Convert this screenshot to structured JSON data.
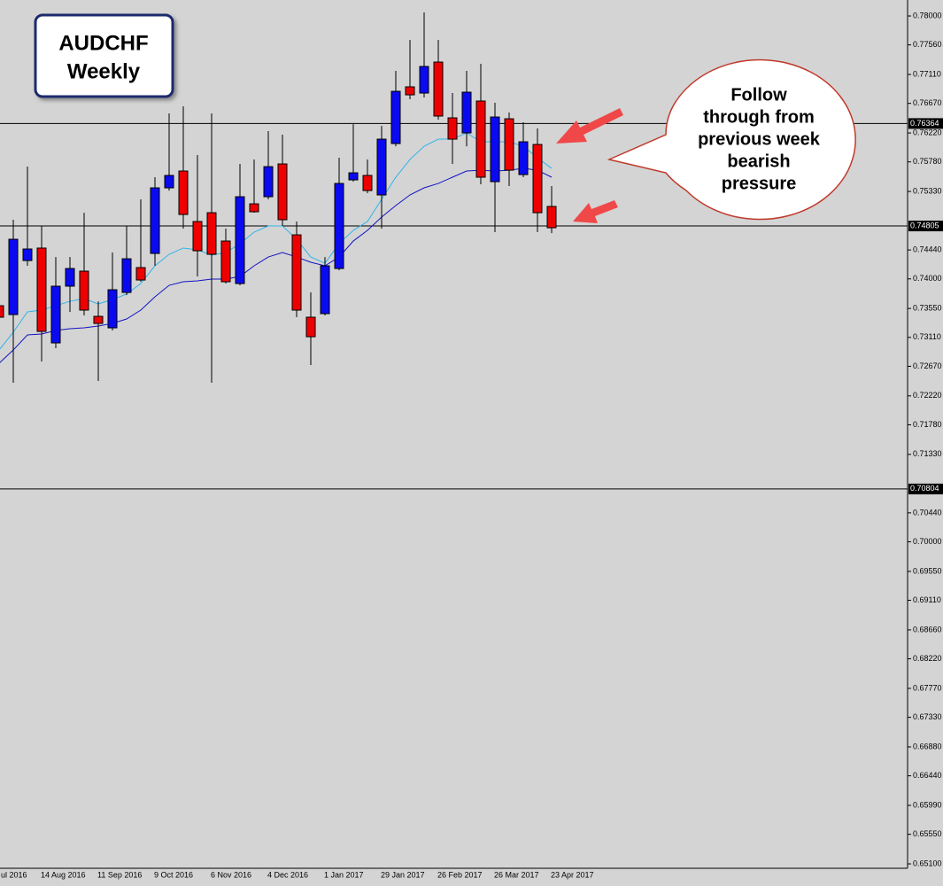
{
  "chart_data": {
    "type": "candlestick",
    "title": "AUDCHF",
    "subtitle": "Weekly",
    "callout": [
      "Follow",
      "through from",
      "previous week",
      "bearish",
      "pressure"
    ],
    "categories": [
      "ul 2016",
      null,
      null,
      "14 Aug 2016",
      null,
      null,
      null,
      "11 Sep 2016",
      null,
      null,
      null,
      "9 Oct 2016",
      null,
      null,
      null,
      "6 Nov 2016",
      null,
      null,
      null,
      "4 Dec 2016",
      null,
      null,
      null,
      "1 Jan 2017",
      null,
      null,
      null,
      "29 Jan 2017",
      null,
      null,
      null,
      "26 Feb 2017",
      null,
      null,
      null,
      "26 Mar 2017",
      null,
      null,
      null,
      "23 Apr 2017"
    ],
    "open": [
      0.73592,
      0.73457,
      0.74279,
      0.74469,
      0.73026,
      0.73889,
      0.74118,
      0.7343,
      0.73255,
      0.73794,
      0.74172,
      0.74387,
      0.75385,
      0.75641,
      0.74873,
      0.75007,
      0.74576,
      0.73929,
      0.75142,
      0.7525,
      0.75749,
      0.7467,
      0.73417,
      0.73471,
      0.74158,
      0.75506,
      0.75574,
      0.75277,
      0.76059,
      0.76922,
      0.76827,
      0.77299,
      0.7645,
      0.76221,
      0.76706,
      0.75479,
      0.76436,
      0.75587,
      0.76045,
      0.75102
    ],
    "high": [
      0.73794,
      0.749,
      0.75708,
      0.74805,
      0.74333,
      0.74333,
      0.75007,
      0.73659,
      0.74401,
      0.74805,
      0.7521,
      0.75547,
      0.76517,
      0.76625,
      0.75884,
      0.76517,
      0.74765,
      0.75749,
      0.75816,
      0.76248,
      0.76194,
      0.74873,
      0.73794,
      0.74333,
      0.75843,
      0.76355,
      0.75816,
      0.76328,
      0.77164,
      0.77636,
      0.78054,
      0.77636,
      0.76827,
      0.77164,
      0.77272,
      0.76679,
      0.76531,
      0.76382,
      0.76288,
      0.75412
    ],
    "low": [
      0.73255,
      0.72419,
      0.74199,
      0.72743,
      0.72945,
      0.73498,
      0.73444,
      0.72446,
      0.73215,
      0.73754,
      0.73956,
      0.74199,
      0.75344,
      0.74765,
      0.74037,
      0.72419,
      0.73929,
      0.73902,
      0.75007,
      0.7521,
      0.74805,
      0.73417,
      0.72689,
      0.73444,
      0.74131,
      0.75479,
      0.75304,
      0.74765,
      0.76018,
      0.76733,
      0.7676,
      0.76423,
      0.75749,
      0.76018,
      0.75439,
      0.74711,
      0.75412,
      0.75547,
      0.74711,
      0.74697
    ],
    "close": [
      0.73417,
      0.74603,
      0.74455,
      0.73201,
      0.73889,
      0.74158,
      0.73525,
      0.73322,
      0.73835,
      0.74306,
      0.73983,
      0.75385,
      0.75574,
      0.7498,
      0.74428,
      0.74374,
      0.73956,
      0.7525,
      0.75021,
      0.75708,
      0.749,
      0.73525,
      0.7312,
      0.74199,
      0.75452,
      0.75614,
      0.75344,
      0.76126,
      0.76854,
      0.768,
      0.77232,
      0.76477,
      0.76126,
      0.76841,
      0.75547,
      0.76463,
      0.75654,
      0.76086,
      0.75007,
      0.74778
    ],
    "up_color": "#0a0af0",
    "down_color": "#ee0000",
    "lines": [
      {
        "color": "#2fb4ea",
        "values": [
          0.72918,
          0.73188,
          0.73498,
          0.73525,
          0.73592,
          0.73659,
          0.737,
          0.73619,
          0.73687,
          0.73768,
          0.73929,
          0.74199,
          0.74374,
          0.74469,
          0.74442,
          0.74361,
          0.74401,
          0.74536,
          0.74711,
          0.74805,
          0.74805,
          0.74603,
          0.74333,
          0.74239,
          0.74536,
          0.74738,
          0.74873,
          0.7521,
          0.75547,
          0.75816,
          0.76018,
          0.76126,
          0.76126,
          0.76221,
          0.76086,
          0.76086,
          0.76086,
          0.76018,
          0.75843,
          0.75681
        ]
      },
      {
        "color": "#1212c4",
        "values": [
          0.72716,
          0.72918,
          0.73148,
          0.73161,
          0.73215,
          0.73242,
          0.73255,
          0.73282,
          0.73322,
          0.7339,
          0.73525,
          0.73727,
          0.73902,
          0.73956,
          0.7397,
          0.73997,
          0.73997,
          0.74037,
          0.74199,
          0.74333,
          0.74401,
          0.74333,
          0.74253,
          0.74199,
          0.74333,
          0.74576,
          0.74738,
          0.7494,
          0.75116,
          0.75277,
          0.75385,
          0.75452,
          0.75547,
          0.75641,
          0.75654,
          0.75641,
          0.75654,
          0.75681,
          0.75654,
          0.75547
        ]
      }
    ],
    "hlines": [
      0.76364,
      0.74805,
      0.70804
    ],
    "ylim": [
      0.65033,
      0.78243
    ],
    "yticks": [
      {
        "value": 0.78,
        "label": "0.78000"
      },
      {
        "value": 0.7756,
        "label": "0.77560"
      },
      {
        "value": 0.7711,
        "label": "0.77110"
      },
      {
        "value": 0.7667,
        "label": "0.76670"
      },
      {
        "value": 0.7622,
        "label": "0.76220"
      },
      {
        "value": 0.7578,
        "label": "0.75780"
      },
      {
        "value": 0.7533,
        "label": "0.75330"
      },
      {
        "value": 0.7444,
        "label": "0.74440"
      },
      {
        "value": 0.74,
        "label": "0.74000"
      },
      {
        "value": 0.7355,
        "label": "0.73550"
      },
      {
        "value": 0.7311,
        "label": "0.73110"
      },
      {
        "value": 0.7267,
        "label": "0.72670"
      },
      {
        "value": 0.7222,
        "label": "0.72220"
      },
      {
        "value": 0.7178,
        "label": "0.71780"
      },
      {
        "value": 0.7133,
        "label": "0.71330"
      },
      {
        "value": 0.7044,
        "label": "0.70440"
      },
      {
        "value": 0.7,
        "label": "0.70000"
      },
      {
        "value": 0.6955,
        "label": "0.69550"
      },
      {
        "value": 0.6911,
        "label": "0.69110"
      },
      {
        "value": 0.6866,
        "label": "0.68660"
      },
      {
        "value": 0.6822,
        "label": "0.68220"
      },
      {
        "value": 0.6777,
        "label": "0.67770"
      },
      {
        "value": 0.6733,
        "label": "0.67330"
      },
      {
        "value": 0.6688,
        "label": "0.66880"
      },
      {
        "value": 0.6644,
        "label": "0.66440"
      },
      {
        "value": 0.6599,
        "label": "0.65990"
      },
      {
        "value": 0.6555,
        "label": "0.65550"
      },
      {
        "value": 0.651,
        "label": "0.65100"
      }
    ],
    "grid": false
  }
}
